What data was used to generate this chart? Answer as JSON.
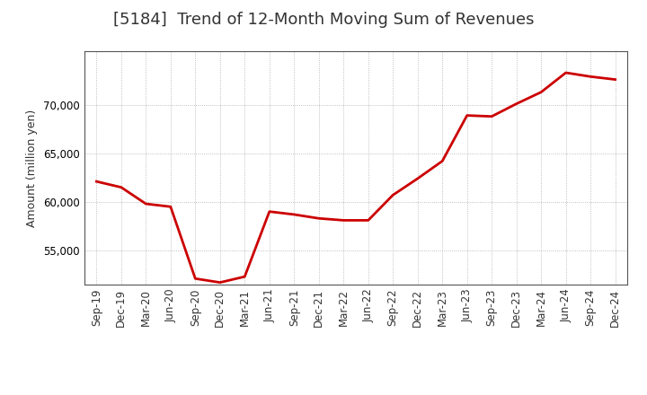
{
  "title": "[5184]  Trend of 12-Month Moving Sum of Revenues",
  "ylabel": "Amount (million yen)",
  "line_color": "#cc0000",
  "background_color": "#ffffff",
  "plot_bg_color": "#ffffff",
  "grid_color": "#999999",
  "ylim": [
    51500,
    75500
  ],
  "yticks": [
    55000,
    60000,
    65000,
    70000
  ],
  "labels": [
    "Sep-19",
    "Dec-19",
    "Mar-20",
    "Jun-20",
    "Sep-20",
    "Dec-20",
    "Mar-21",
    "Jun-21",
    "Sep-21",
    "Dec-21",
    "Mar-22",
    "Jun-22",
    "Sep-22",
    "Dec-22",
    "Mar-23",
    "Jun-23",
    "Sep-23",
    "Dec-23",
    "Mar-24",
    "Jun-24",
    "Sep-24",
    "Dec-24"
  ],
  "values": [
    62100,
    61500,
    59800,
    59500,
    52100,
    51700,
    52300,
    59000,
    58700,
    58300,
    58100,
    58100,
    60700,
    62400,
    64200,
    68900,
    68800,
    70100,
    71300,
    73300,
    72900,
    72600
  ],
  "title_color": "#333333",
  "title_fontsize": 13,
  "tick_fontsize": 8.5,
  "ylabel_fontsize": 9,
  "linewidth": 2.0
}
